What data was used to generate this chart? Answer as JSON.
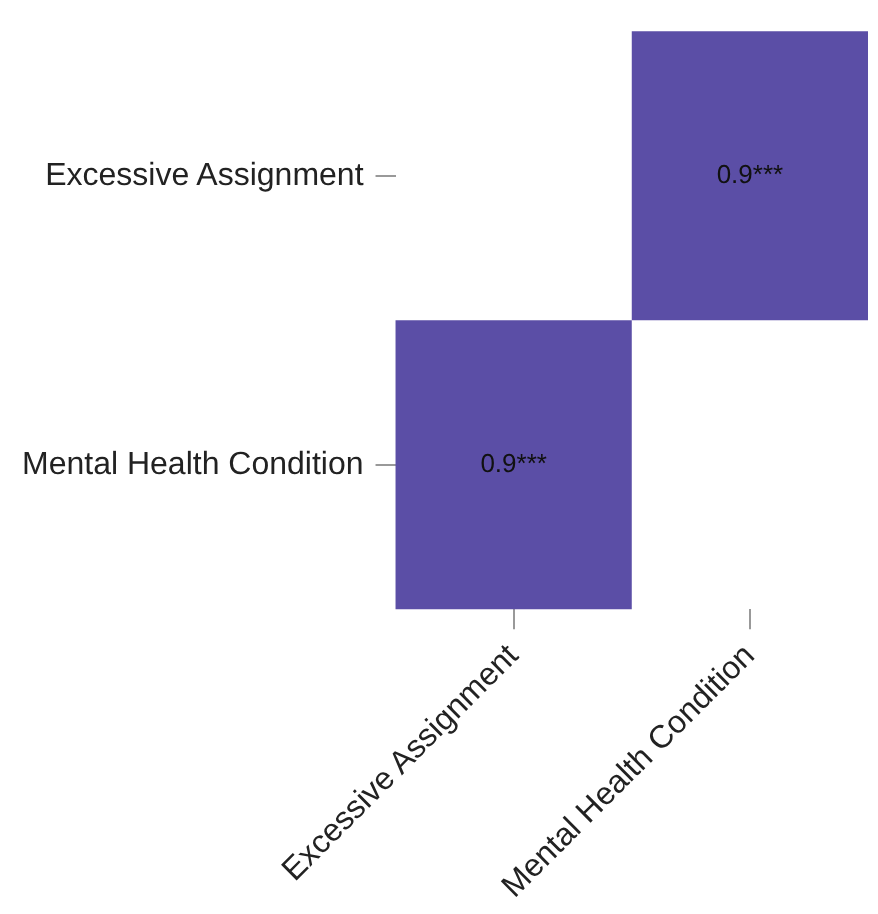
{
  "chart_data": {
    "type": "heatmap",
    "categories": [
      "Excessive Assignment",
      "Mental Health Condition"
    ],
    "y_categories": [
      "Excessive Assignment",
      "Mental Health Condition"
    ],
    "cells": [
      [
        null,
        0.9
      ],
      [
        0.9,
        null
      ]
    ],
    "cell_labels": [
      [
        null,
        "0.9***"
      ],
      [
        "0.9***",
        null
      ]
    ],
    "color": "#493a9c"
  }
}
